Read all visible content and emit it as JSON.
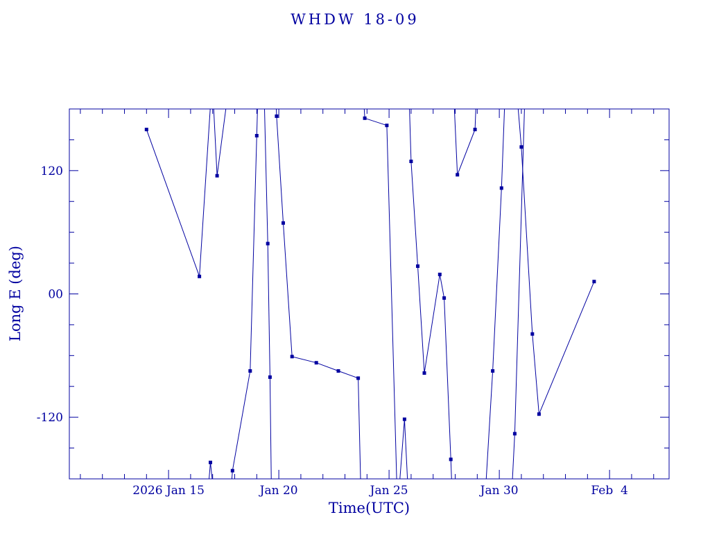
{
  "title": "WHDW 18-09",
  "colors": {
    "plot": "#0000A0",
    "background": "#FFFFFF"
  },
  "chart_data": {
    "type": "line",
    "title": "WHDW 18-09",
    "xlabel": "Time(UTC)",
    "ylabel": "Long E (deg)",
    "x_axis_unit": "day of year 2026 continued (Jan 15 = 15, Feb 4 = 35)",
    "xlim": [
      10.5,
      37.7
    ],
    "ylim": [
      -180,
      180
    ],
    "grid": false,
    "legend": false,
    "marker_style": "filled-square",
    "x_ticks": [
      {
        "day": 15,
        "label": "2026 Jan 15"
      },
      {
        "day": 20,
        "label": "Jan 20"
      },
      {
        "day": 25,
        "label": "Jan 25"
      },
      {
        "day": 30,
        "label": "Jan 30"
      },
      {
        "day": 35,
        "label": "Feb  4"
      }
    ],
    "y_ticks": [
      {
        "value": 120,
        "label": "120"
      },
      {
        "value": 0,
        "label": "00"
      },
      {
        "value": -120,
        "label": "-120"
      }
    ],
    "x_minor_tick_step_days": 1,
    "y_minor_tick_step_deg": 30,
    "points": [
      [
        14.0,
        160
      ],
      [
        16.4,
        17
      ],
      [
        16.9,
        -164
      ],
      [
        17.2,
        115
      ],
      [
        17.9,
        -172
      ],
      [
        18.7,
        -75
      ],
      [
        19.0,
        154
      ],
      [
        19.5,
        49
      ],
      [
        19.6,
        -81
      ],
      [
        19.9,
        173
      ],
      [
        20.2,
        69
      ],
      [
        20.6,
        -61
      ],
      [
        21.7,
        -67
      ],
      [
        22.7,
        -75
      ],
      [
        23.6,
        -82
      ],
      [
        23.9,
        171
      ],
      [
        24.9,
        164
      ],
      [
        25.7,
        -122
      ],
      [
        26.0,
        129
      ],
      [
        26.3,
        27
      ],
      [
        26.6,
        -77
      ],
      [
        27.3,
        19
      ],
      [
        27.5,
        -4
      ],
      [
        27.8,
        -161
      ],
      [
        28.1,
        116
      ],
      [
        28.9,
        160
      ],
      [
        29.7,
        -75
      ],
      [
        30.1,
        103
      ],
      [
        30.7,
        -136
      ],
      [
        31.0,
        143
      ],
      [
        31.5,
        -39
      ],
      [
        31.8,
        -117
      ],
      [
        34.3,
        12
      ]
    ],
    "lines": [
      [
        [
          14.0,
          160
        ],
        [
          16.4,
          17
        ],
        [
          16.95,
          200
        ]
      ],
      [
        [
          17.0,
          200
        ],
        [
          17.2,
          115
        ],
        [
          17.72,
          200
        ]
      ],
      [
        [
          16.78,
          -195
        ],
        [
          16.9,
          -164
        ],
        [
          17.05,
          -195
        ]
      ],
      [
        [
          17.82,
          -195
        ],
        [
          17.9,
          -172
        ],
        [
          18.7,
          -75
        ],
        [
          19.0,
          154
        ],
        [
          19.06,
          200
        ]
      ],
      [
        [
          19.33,
          200
        ],
        [
          19.5,
          49
        ],
        [
          19.6,
          -81
        ],
        [
          19.67,
          -200
        ]
      ],
      [
        [
          19.85,
          200
        ],
        [
          19.9,
          173
        ],
        [
          20.2,
          69
        ],
        [
          20.6,
          -61
        ],
        [
          21.7,
          -67
        ],
        [
          22.7,
          -75
        ],
        [
          23.6,
          -82
        ],
        [
          23.73,
          -200
        ]
      ],
      [
        [
          23.82,
          200
        ],
        [
          23.9,
          171
        ],
        [
          24.9,
          164
        ],
        [
          25.37,
          -200
        ]
      ],
      [
        [
          25.42,
          -200
        ],
        [
          25.7,
          -122
        ],
        [
          25.88,
          -200
        ]
      ],
      [
        [
          25.9,
          200
        ],
        [
          26.0,
          129
        ],
        [
          26.3,
          27
        ],
        [
          26.6,
          -77
        ],
        [
          27.3,
          19
        ],
        [
          27.5,
          -4
        ],
        [
          27.8,
          -161
        ],
        [
          27.87,
          -200
        ]
      ],
      [
        [
          27.92,
          200
        ],
        [
          28.1,
          116
        ],
        [
          28.9,
          160
        ],
        [
          28.97,
          200
        ]
      ],
      [
        [
          29.35,
          -200
        ],
        [
          29.7,
          -75
        ],
        [
          30.1,
          103
        ],
        [
          30.27,
          200
        ]
      ],
      [
        [
          30.78,
          200
        ],
        [
          31.0,
          143
        ],
        [
          31.5,
          -39
        ],
        [
          31.8,
          -117
        ],
        [
          34.3,
          12
        ]
      ],
      [
        [
          30.55,
          -200
        ],
        [
          30.7,
          -136
        ],
        [
          31.17,
          200
        ]
      ]
    ]
  }
}
